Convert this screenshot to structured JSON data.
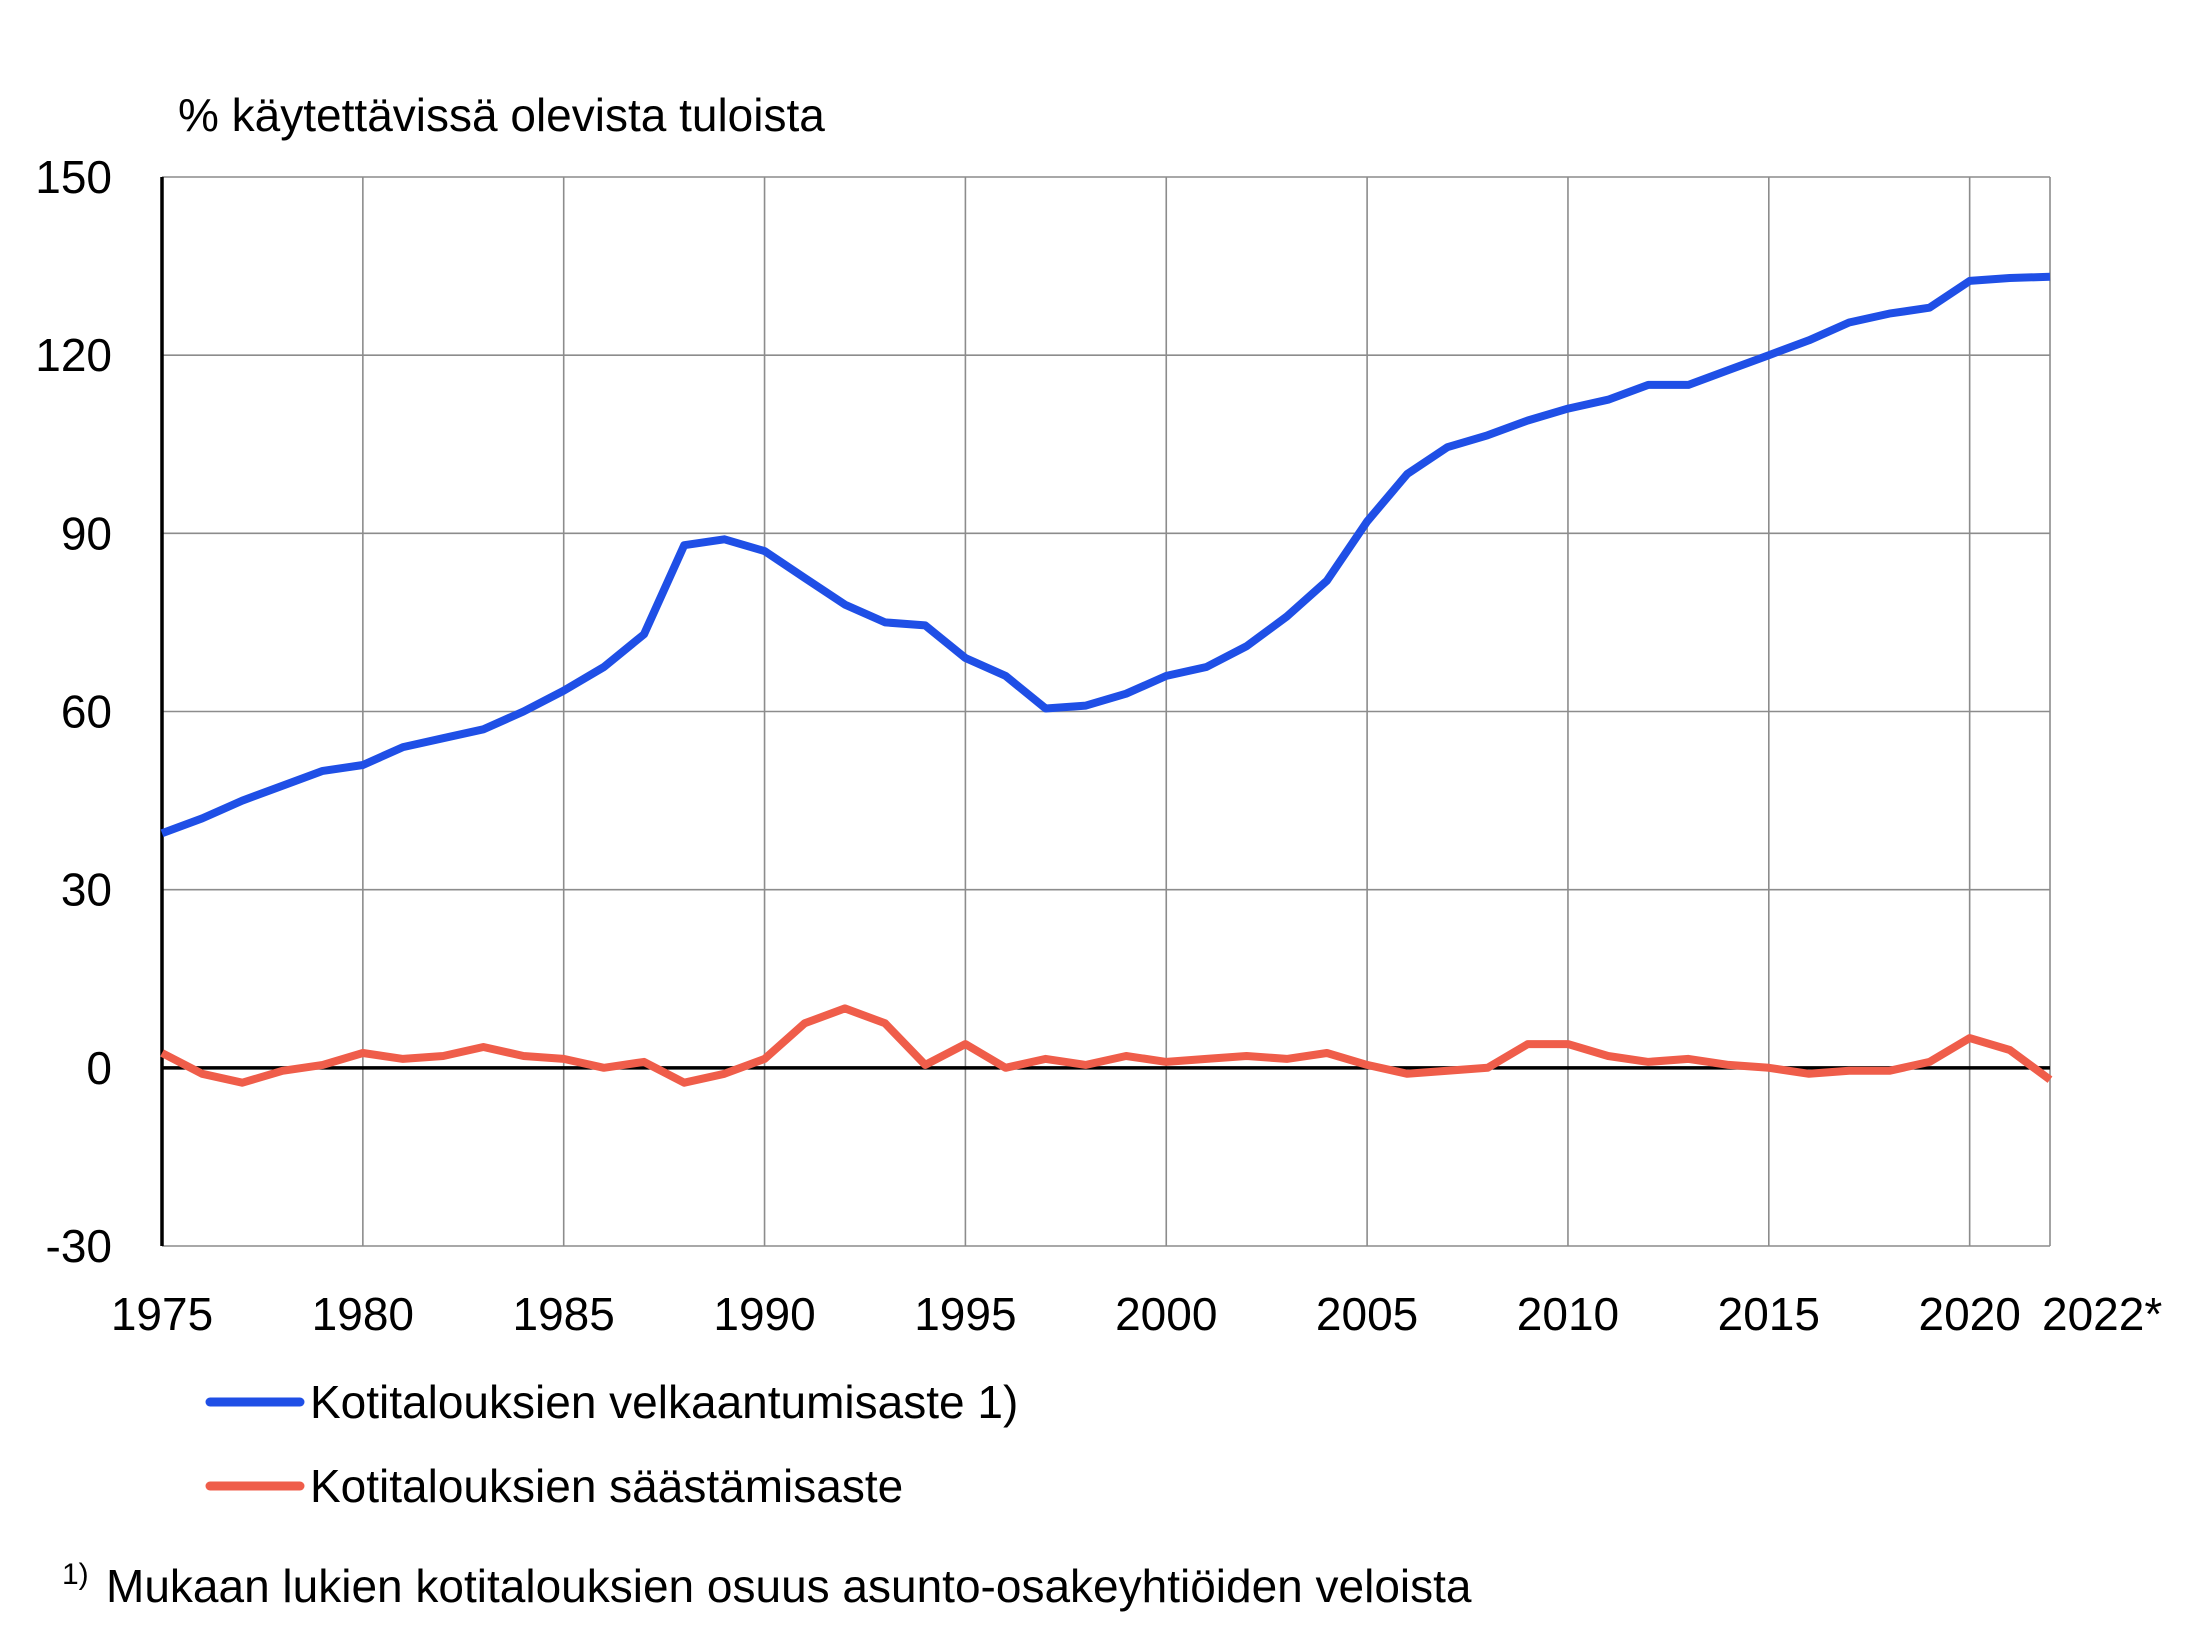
{
  "chart_data": {
    "type": "line",
    "title": "",
    "ylabel": "% käytettävissä olevista tuloista",
    "xlabel": "",
    "xlim": [
      1975,
      2022
    ],
    "ylim": [
      -30,
      150
    ],
    "y_ticks": [
      -30,
      0,
      30,
      60,
      90,
      120,
      150
    ],
    "x_ticks": [
      {
        "value": 1975,
        "label": "1975"
      },
      {
        "value": 1980,
        "label": "1980"
      },
      {
        "value": 1985,
        "label": "1985"
      },
      {
        "value": 1990,
        "label": "1990"
      },
      {
        "value": 1995,
        "label": "1995"
      },
      {
        "value": 2000,
        "label": "2000"
      },
      {
        "value": 2005,
        "label": "2005"
      },
      {
        "value": 2010,
        "label": "2010"
      },
      {
        "value": 2015,
        "label": "2015"
      },
      {
        "value": 2020,
        "label": "2020"
      },
      {
        "value": 2022,
        "label": "2022*"
      }
    ],
    "grid": true,
    "legend_position": "bottom-left",
    "x": [
      1975,
      1976,
      1977,
      1978,
      1979,
      1980,
      1981,
      1982,
      1983,
      1984,
      1985,
      1986,
      1987,
      1988,
      1989,
      1990,
      1991,
      1992,
      1993,
      1994,
      1995,
      1996,
      1997,
      1998,
      1999,
      2000,
      2001,
      2002,
      2003,
      2004,
      2005,
      2006,
      2007,
      2008,
      2009,
      2010,
      2011,
      2012,
      2013,
      2014,
      2015,
      2016,
      2017,
      2018,
      2019,
      2020,
      2021,
      2022
    ],
    "series": [
      {
        "name": "Kotitalouksien velkaantumisaste 1)",
        "color": "#1f4fe6",
        "values": [
          39.5,
          42,
          45,
          47.5,
          50,
          51,
          54,
          55.5,
          57,
          60,
          63.5,
          67.5,
          73,
          88,
          89,
          87,
          82.5,
          78,
          75,
          74.5,
          69,
          66,
          60.5,
          61,
          63,
          66,
          67.5,
          71,
          76,
          82,
          92,
          100,
          104.5,
          106.5,
          109,
          111,
          112.5,
          115,
          115,
          117.5,
          120,
          122.5,
          125.5,
          127,
          128,
          132.5,
          133,
          133.2
        ]
      },
      {
        "name": "Kotitalouksien säästämisaste",
        "color": "#ef5d4a",
        "values": [
          2.5,
          -1,
          -2.5,
          -0.5,
          0.5,
          2.5,
          1.5,
          2,
          3.5,
          2,
          1.5,
          0,
          1,
          -2.5,
          -1,
          1.5,
          7.5,
          10,
          7.5,
          0.5,
          4,
          0,
          1.5,
          0.5,
          2,
          1,
          1.5,
          2,
          1.5,
          2.5,
          0.5,
          -1,
          -0.5,
          0,
          4,
          4,
          2,
          1,
          1.5,
          0.5,
          0,
          -1,
          -0.5,
          -0.5,
          1,
          5,
          3,
          -2
        ]
      }
    ],
    "footnote_marker": "1)",
    "footnote": "Mukaan lukien kotitalouksien osuus asunto-osakeyhtiöiden veloista"
  }
}
